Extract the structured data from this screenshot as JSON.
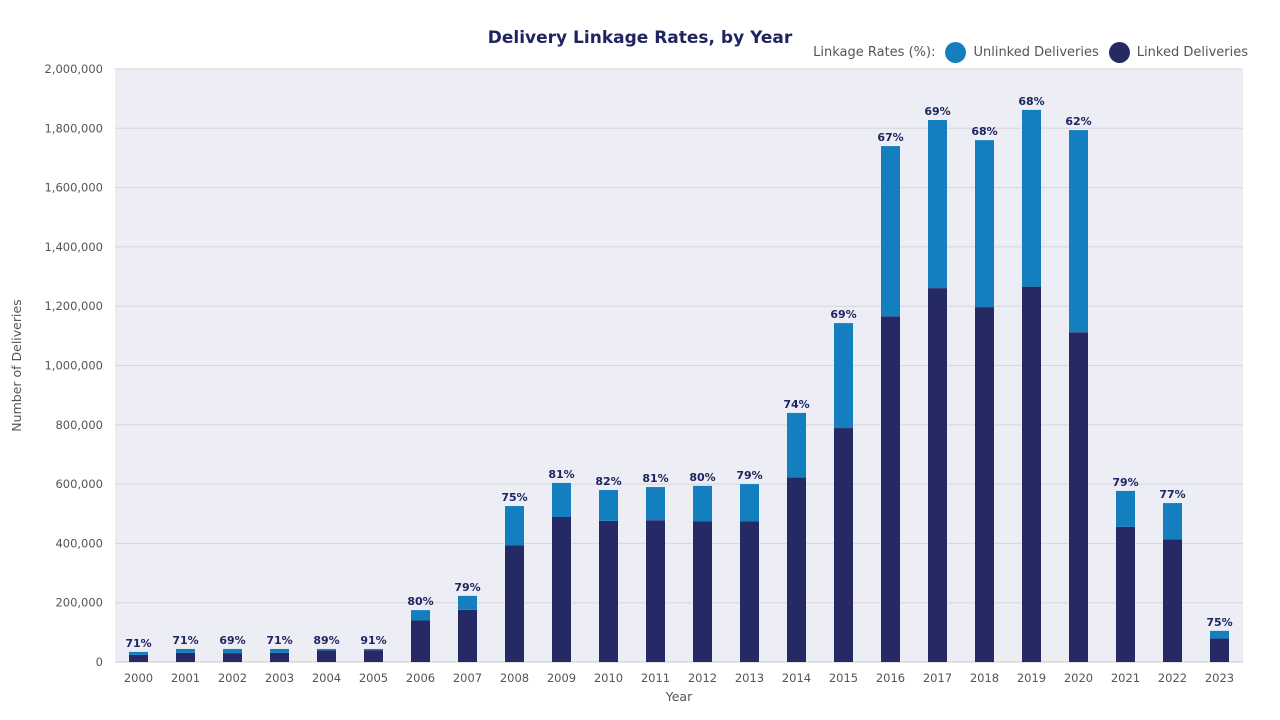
{
  "chart_data": {
    "type": "bar",
    "stacked": true,
    "title": "Delivery Linkage Rates, by Year",
    "xlabel": "Year",
    "ylabel": "Number of Deliveries",
    "ylim": [
      0,
      2000000
    ],
    "yticks": [
      0,
      200000,
      400000,
      600000,
      800000,
      1000000,
      1200000,
      1400000,
      1600000,
      1800000,
      2000000
    ],
    "grid": true,
    "legend_title": "Linkage Rates (%):",
    "legend_position": "top-right",
    "categories": [
      "2000",
      "2001",
      "2002",
      "2003",
      "2004",
      "2005",
      "2006",
      "2007",
      "2008",
      "2009",
      "2010",
      "2011",
      "2012",
      "2013",
      "2014",
      "2015",
      "2016",
      "2017",
      "2018",
      "2019",
      "2020",
      "2021",
      "2022",
      "2023"
    ],
    "series": [
      {
        "name": "Linked Deliveries",
        "color": "#252a64",
        "values": [
          24000,
          31000,
          30000,
          31000,
          39000,
          40000,
          140000,
          176000,
          394000,
          489000,
          476000,
          478000,
          475000,
          474000,
          622000,
          789000,
          1166000,
          1261000,
          1197000,
          1266000,
          1112000,
          456000,
          413000,
          79000
        ]
      },
      {
        "name": "Unlinked Deliveries",
        "color": "#137fbf",
        "values": [
          10000,
          13000,
          14000,
          13000,
          5000,
          4000,
          35000,
          47000,
          132000,
          115000,
          104000,
          112000,
          119000,
          126000,
          218000,
          354000,
          574000,
          567000,
          563000,
          596000,
          682000,
          121000,
          123000,
          26000
        ]
      }
    ],
    "data_labels": [
      "71%",
      "71%",
      "69%",
      "71%",
      "89%",
      "91%",
      "80%",
      "79%",
      "75%",
      "81%",
      "82%",
      "81%",
      "80%",
      "79%",
      "74%",
      "69%",
      "67%",
      "69%",
      "68%",
      "68%",
      "62%",
      "79%",
      "77%",
      "75%"
    ]
  }
}
